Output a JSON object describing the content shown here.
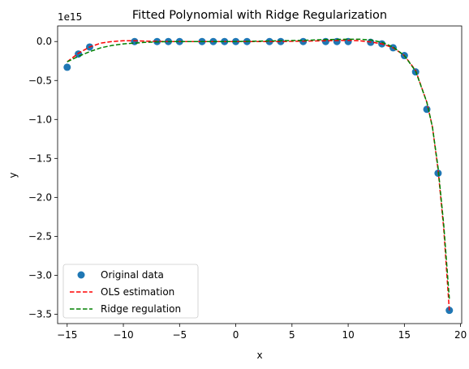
{
  "chart_data": {
    "type": "scatter",
    "title": "Fitted Polynomial with Ridge Regularization",
    "xlabel": "x",
    "ylabel": "y",
    "y_offset_label": "1e15",
    "y_scale": 1000000000000000.0,
    "xlim": [
      -15.85,
      20.1
    ],
    "ylim": [
      -3.62,
      0.2
    ],
    "x_ticks": [
      -15,
      -10,
      -5,
      0,
      5,
      10,
      15,
      20
    ],
    "x_tick_labels": [
      "−15",
      "−10",
      "−5",
      "0",
      "5",
      "10",
      "15",
      "20"
    ],
    "y_ticks": [
      0.0,
      -0.5,
      -1.0,
      -1.5,
      -2.0,
      -2.5,
      -3.0,
      -3.5
    ],
    "y_tick_labels": [
      "0.0",
      "−0.5",
      "−1.0",
      "−1.5",
      "−2.0",
      "−2.5",
      "−3.0",
      "−3.5"
    ],
    "grid": false,
    "legend_position": "lower-left",
    "series": [
      {
        "name": "Original data",
        "kind": "scatter",
        "color": "#1f77b4",
        "x": [
          -15,
          -14,
          -13,
          -9,
          -7,
          -6,
          -5,
          -3,
          -2,
          -1,
          0,
          1,
          3,
          4,
          6,
          8,
          9,
          10,
          12,
          13,
          14,
          15,
          16,
          17,
          18,
          19
        ],
        "y": [
          -0.33,
          -0.16,
          -0.07,
          0.0,
          0.0,
          0.0,
          0.0,
          0.0,
          0.0,
          0.0,
          0.0,
          0.0,
          0.0,
          0.0,
          0.0,
          0.0,
          0.0,
          0.0,
          -0.01,
          -0.03,
          -0.08,
          -0.18,
          -0.39,
          -0.87,
          -1.69,
          -3.45
        ]
      },
      {
        "name": "OLS estimation",
        "kind": "line",
        "dash": "dashed",
        "color": "#ff0000",
        "x": [
          -15,
          -14,
          -13,
          -12,
          -11,
          -10,
          -9,
          -8,
          -6,
          -4,
          -2,
          0,
          2,
          4,
          6,
          8,
          10,
          11,
          12,
          13,
          14,
          15,
          16,
          17,
          17.5,
          18,
          18.5,
          19
        ],
        "y": [
          -0.26,
          -0.15,
          -0.07,
          -0.02,
          0.0,
          0.01,
          0.01,
          0.005,
          0.0,
          0.0,
          0.0,
          0.0,
          0.0,
          0.0,
          0.005,
          0.01,
          0.015,
          0.01,
          -0.005,
          -0.03,
          -0.08,
          -0.18,
          -0.37,
          -0.78,
          -1.1,
          -1.65,
          -2.4,
          -3.45
        ]
      },
      {
        "name": "Ridge regulation",
        "kind": "line",
        "dash": "dashed",
        "color": "#008000",
        "x": [
          -15,
          -14,
          -13,
          -12,
          -11,
          -10,
          -9,
          -8,
          -6,
          -4,
          -2,
          0,
          2,
          4,
          6,
          8,
          10,
          11,
          12,
          13,
          14,
          15,
          16,
          17,
          17.5,
          18,
          18.5,
          19
        ],
        "y": [
          -0.26,
          -0.19,
          -0.13,
          -0.08,
          -0.05,
          -0.03,
          -0.02,
          -0.01,
          0.0,
          0.0,
          0.0,
          0.0,
          0.005,
          0.01,
          0.015,
          0.025,
          0.03,
          0.03,
          0.02,
          -0.01,
          -0.07,
          -0.18,
          -0.38,
          -0.78,
          -1.1,
          -1.62,
          -2.35,
          -3.3
        ]
      }
    ]
  }
}
